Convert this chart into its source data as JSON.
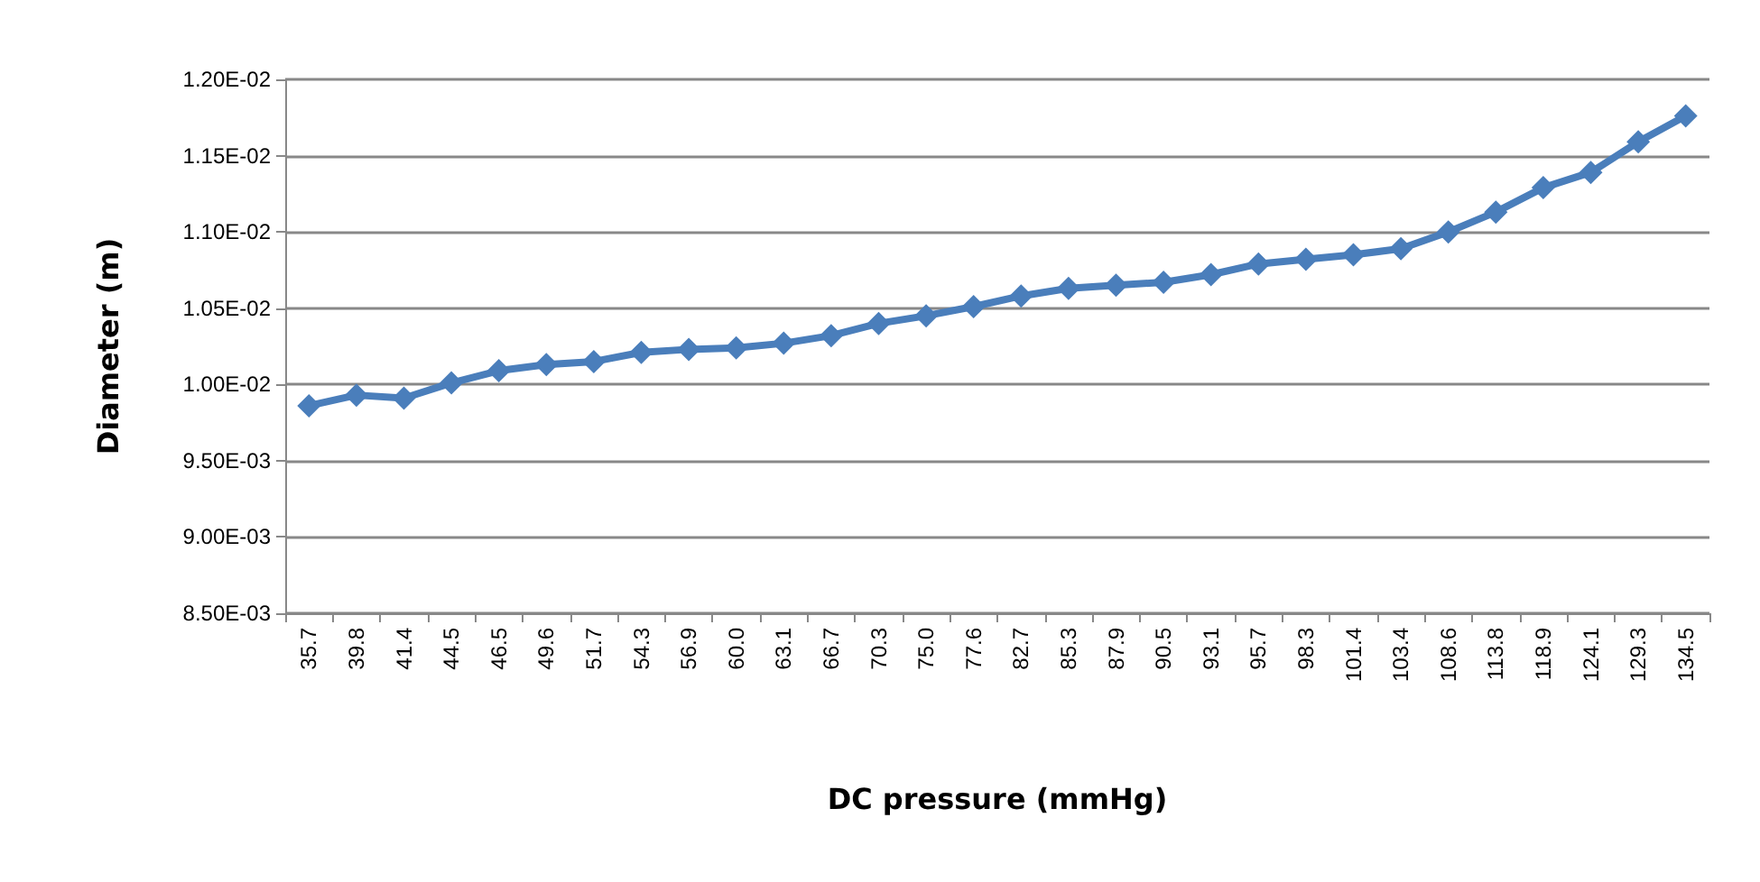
{
  "chart_data": {
    "type": "line",
    "xlabel": "DC pressure (mmHg)",
    "ylabel": "Diameter (m)",
    "categories": [
      "35.7",
      "39.8",
      "41.4",
      "44.5",
      "46.5",
      "49.6",
      "51.7",
      "54.3",
      "56.9",
      "60.0",
      "63.1",
      "66.7",
      "70.3",
      "75.0",
      "77.6",
      "82.7",
      "85.3",
      "87.9",
      "90.5",
      "93.1",
      "95.7",
      "98.3",
      "101.4",
      "103.4",
      "108.6",
      "113.8",
      "118.9",
      "124.1",
      "129.3",
      "134.5"
    ],
    "series": [
      {
        "color": "#4a7ebb",
        "values": [
          0.00986,
          0.00993,
          0.00991,
          0.01001,
          0.01009,
          0.01013,
          0.01015,
          0.01021,
          0.01023,
          0.01024,
          0.01027,
          0.01032,
          0.0104,
          0.01045,
          0.01051,
          0.01058,
          0.01063,
          0.01065,
          0.01067,
          0.01072,
          0.01079,
          0.01082,
          0.01085,
          0.01089,
          0.011,
          0.01113,
          0.01129,
          0.01139,
          0.01159,
          0.01176
        ]
      }
    ],
    "ylim": [
      0.0085,
      0.012
    ],
    "yticks": [
      {
        "value": 0.0085,
        "label": "8.50E-03"
      },
      {
        "value": 0.009,
        "label": "9.00E-03"
      },
      {
        "value": 0.0095,
        "label": "9.50E-03"
      },
      {
        "value": 0.01,
        "label": "1.00E-02"
      },
      {
        "value": 0.0105,
        "label": "1.05E-02"
      },
      {
        "value": 0.011,
        "label": "1.10E-02"
      },
      {
        "value": 0.0115,
        "label": "1.15E-02"
      },
      {
        "value": 0.012,
        "label": "1.20E-02"
      }
    ],
    "grid": "y",
    "marker": "diamond",
    "line_style": "solid"
  }
}
